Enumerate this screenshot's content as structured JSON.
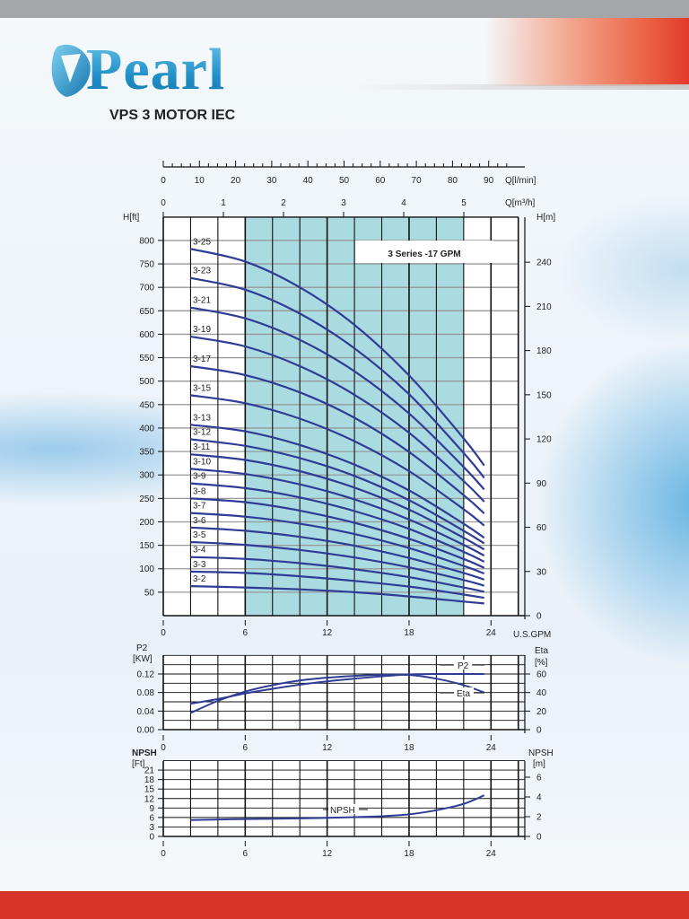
{
  "header": {
    "brand": "Pearl",
    "subtitle": "VPS 3 MOTOR IEC"
  },
  "colors": {
    "curve": "#2e3c96",
    "shading": "#a9dbe0",
    "accent_red": "#d9342a",
    "brand_blue": "#2a9fd2"
  },
  "chart_data": [
    {
      "type": "line",
      "title": "3 Series -17 GPM",
      "xlabel": "U.S.GPM",
      "ylabel": "H[ft]",
      "ylabel_right": "H[m]",
      "top_axis_1": {
        "label": "Q[l/min]",
        "ticks": [
          0,
          10,
          20,
          30,
          40,
          50,
          60,
          70,
          80,
          90
        ]
      },
      "top_axis_2": {
        "label": "Q[m³/h]",
        "ticks": [
          0,
          1,
          2,
          3,
          4,
          5
        ]
      },
      "xticks": [
        0,
        6,
        12,
        18,
        24
      ],
      "yticks": [
        50,
        100,
        150,
        200,
        250,
        300,
        350,
        400,
        450,
        500,
        550,
        600,
        650,
        700,
        750,
        800
      ],
      "yticks_right": [
        0,
        30,
        60,
        90,
        120,
        150,
        180,
        210,
        240
      ],
      "xlim": [
        0,
        26
      ],
      "ylim": [
        0,
        850
      ],
      "grid": true,
      "recommended_range_gpm": [
        6,
        22
      ],
      "x": [
        2,
        6,
        10,
        14,
        18,
        22,
        23.5
      ],
      "series": [
        {
          "name": "3-25",
          "values": [
            782,
            755,
            700,
            620,
            512,
            378,
            320
          ]
        },
        {
          "name": "3-23",
          "values": [
            720,
            695,
            644,
            570,
            472,
            347,
            294
          ]
        },
        {
          "name": "3-21",
          "values": [
            657,
            634,
            588,
            521,
            431,
            317,
            269
          ]
        },
        {
          "name": "3-19",
          "values": [
            595,
            574,
            532,
            471,
            390,
            287,
            243
          ]
        },
        {
          "name": "3-17",
          "values": [
            532,
            513,
            476,
            422,
            349,
            257,
            218
          ]
        },
        {
          "name": "3-15",
          "values": [
            470,
            453,
            420,
            372,
            308,
            227,
            192
          ]
        },
        {
          "name": "3-13",
          "values": [
            407,
            393,
            364,
            322,
            267,
            196,
            166
          ]
        },
        {
          "name": "3-12",
          "values": [
            376,
            362,
            336,
            298,
            246,
            181,
            154
          ]
        },
        {
          "name": "3-11",
          "values": [
            344,
            332,
            308,
            273,
            226,
            166,
            141
          ]
        },
        {
          "name": "3-10",
          "values": [
            313,
            302,
            280,
            248,
            205,
            151,
            128
          ]
        },
        {
          "name": "3-9",
          "values": [
            282,
            272,
            252,
            223,
            185,
            136,
            115
          ]
        },
        {
          "name": "3-8",
          "values": [
            250,
            242,
            224,
            198,
            164,
            121,
            102
          ]
        },
        {
          "name": "3-7",
          "values": [
            219,
            211,
            196,
            174,
            144,
            106,
            90
          ]
        },
        {
          "name": "3-6",
          "values": [
            188,
            181,
            168,
            149,
            123,
            91,
            77
          ]
        },
        {
          "name": "3-5",
          "values": [
            157,
            151,
            140,
            124,
            103,
            76,
            64
          ]
        },
        {
          "name": "3-4",
          "values": [
            125,
            121,
            112,
            99,
            82,
            60,
            51
          ]
        },
        {
          "name": "3-3",
          "values": [
            94,
            91,
            84,
            74,
            62,
            45,
            38
          ]
        },
        {
          "name": "3-2",
          "values": [
            63,
            60,
            56,
            50,
            41,
            30,
            26
          ]
        }
      ]
    },
    {
      "type": "line",
      "ylabel": "P2",
      "ylabel_unit": "[KW]",
      "ylabel_right": "Eta",
      "ylabel_right_unit": "[%]",
      "xticks": [
        0,
        6,
        12,
        18,
        24
      ],
      "yticks": [
        "0.00",
        "0.04",
        "0.08",
        "0.12"
      ],
      "yticks_right": [
        0,
        20,
        40,
        60
      ],
      "xlim": [
        0,
        26
      ],
      "ylim": [
        0,
        0.16
      ],
      "ylim_right": [
        0,
        80
      ],
      "grid": true,
      "x": [
        2,
        4,
        6,
        8,
        10,
        12,
        14,
        16,
        18,
        20,
        22,
        23.5
      ],
      "series": [
        {
          "name": "P2",
          "axis": "left",
          "values": [
            0.056,
            0.066,
            0.078,
            0.088,
            0.097,
            0.104,
            0.11,
            0.115,
            0.119,
            0.12,
            0.12,
            0.12
          ]
        },
        {
          "name": "Eta",
          "axis": "right",
          "values": [
            18,
            31,
            41,
            48,
            53,
            56,
            58,
            59,
            59,
            55,
            48,
            40
          ]
        }
      ]
    },
    {
      "type": "line",
      "ylabel": "NPSH",
      "ylabel_unit": "[Ft]",
      "ylabel_right": "NPSH",
      "ylabel_right_unit": "[m]",
      "xticks": [
        0,
        6,
        12,
        18,
        24
      ],
      "yticks": [
        0,
        3,
        6,
        9,
        12,
        15,
        18,
        21
      ],
      "yticks_right": [
        0,
        2,
        4,
        6
      ],
      "xlim": [
        0,
        26
      ],
      "ylim": [
        0,
        24
      ],
      "grid": true,
      "x": [
        2,
        6,
        10,
        14,
        16,
        18,
        20,
        22,
        23.5
      ],
      "series": [
        {
          "name": "NPSH",
          "values": [
            5.2,
            5.5,
            5.7,
            6.1,
            6.4,
            7.0,
            8.3,
            10.3,
            13.0
          ]
        }
      ]
    }
  ]
}
